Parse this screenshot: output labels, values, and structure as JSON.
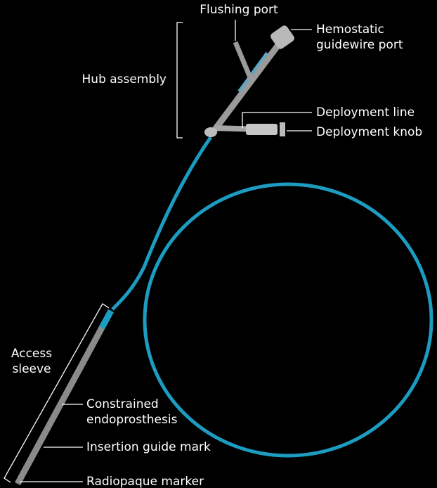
{
  "labels": [
    {
      "lines": [
        "Flushing port"
      ]
    },
    {
      "lines": [
        "Hemostatic",
        "guidewire port"
      ]
    },
    {
      "lines": [
        "Hub assembly"
      ]
    },
    {
      "lines": [
        "Deployment line"
      ]
    },
    {
      "lines": [
        "Deployment knob"
      ]
    },
    {
      "lines": [
        "Access",
        "sleeve"
      ]
    },
    {
      "lines": [
        "Constrained",
        "endoprosthesis"
      ]
    },
    {
      "lines": [
        "Insertion guide mark"
      ]
    },
    {
      "lines": [
        "Radiopaque marker"
      ]
    }
  ]
}
